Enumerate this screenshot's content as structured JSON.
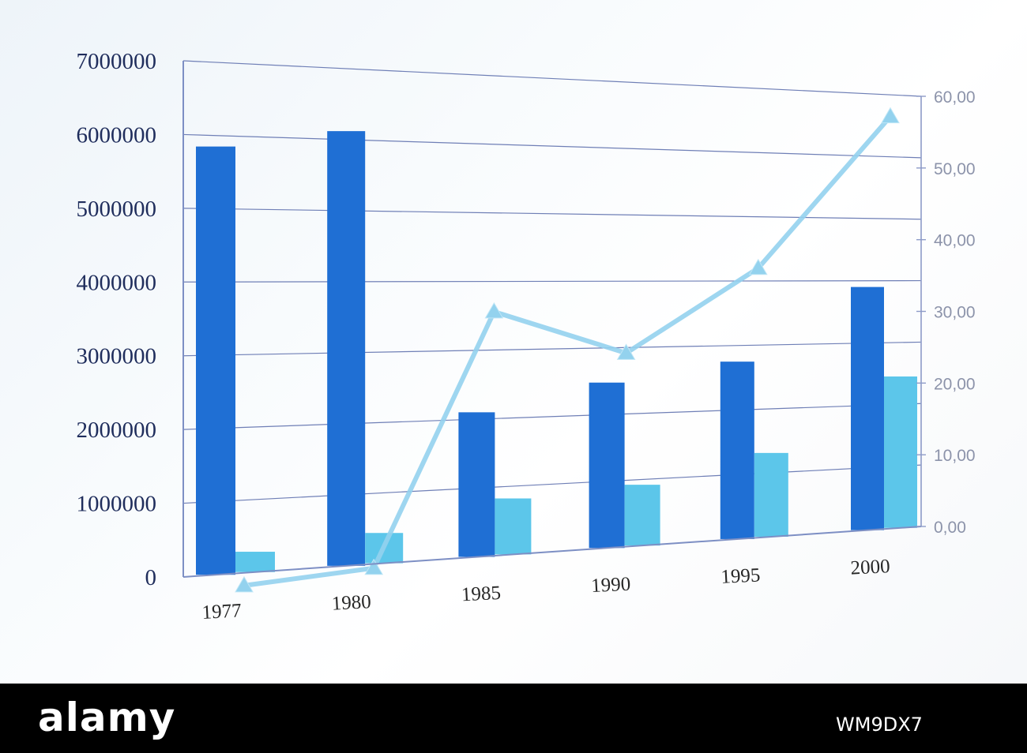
{
  "chart_data": {
    "type": "bar",
    "categories": [
      "1977",
      "1980",
      "1985",
      "1990",
      "1995",
      "2000"
    ],
    "series": [
      {
        "values": [
          5850000,
          6120000,
          2100000,
          2480000,
          2750000,
          3900000
        ],
        "color": "#1f6fd4",
        "axis": "left"
      },
      {
        "values": [
          280000,
          430000,
          820000,
          920000,
          1310000,
          2450000
        ],
        "color": "#5cc6ea",
        "axis": "left"
      },
      {
        "type": "line",
        "values": [
          -1.5,
          -0.5,
          30.5,
          25.0,
          36.0,
          57.0
        ],
        "color": "#93d2ee",
        "axis": "right",
        "marker": "triangle"
      }
    ],
    "ylim": [
      0,
      7000000
    ],
    "y_ticks": [
      "0",
      "1000000",
      "2000000",
      "3000000",
      "4000000",
      "5000000",
      "6000000",
      "7000000"
    ],
    "y2lim": [
      0,
      60
    ],
    "y2_ticks": [
      "0,00",
      "10,00",
      "20,00",
      "30,00",
      "40,00",
      "50,00",
      "60,00"
    ],
    "grid": true,
    "title": "",
    "xlabel": "",
    "ylabel": ""
  },
  "footer": {
    "brand": "alamy",
    "image_id": "WM9DX7"
  }
}
